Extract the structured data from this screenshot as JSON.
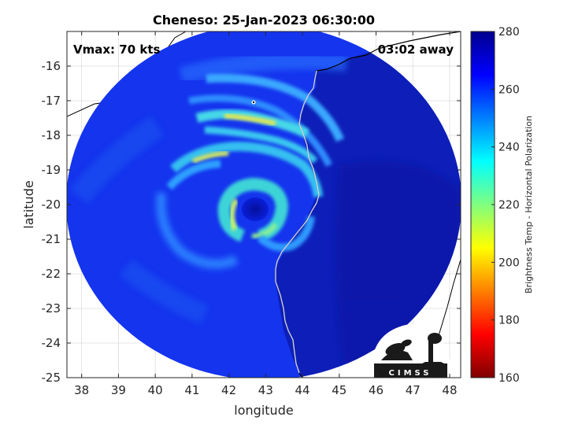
{
  "chart_data": {
    "type": "heatmap",
    "title": "Cheneso: 25-Jan-2023 06:30:00",
    "xlabel": "longitude",
    "ylabel": "latitude",
    "xlim": [
      37.6,
      48.3
    ],
    "ylim": [
      -25,
      -15
    ],
    "x_ticks": [
      38,
      39,
      40,
      41,
      42,
      43,
      44,
      45,
      46,
      47,
      48
    ],
    "y_ticks": [
      -16,
      -17,
      -18,
      -19,
      -20,
      -21,
      -22,
      -23,
      -24,
      -25
    ],
    "grid": true,
    "annotations": {
      "vmax": "Vmax: 70 kts",
      "time_away": "03:02 away"
    },
    "colorbar": {
      "label": "Brightness Temp - Horizontal Polarization",
      "range": [
        160,
        280
      ],
      "ticks": [
        160,
        180,
        200,
        220,
        240,
        260,
        280
      ],
      "colormap": "jet"
    },
    "storm_center": {
      "lon": 42.7,
      "lat": -20.2
    },
    "swath_center": {
      "lon": 42.9,
      "lat": -20.0
    },
    "logo_text": "CIMSS"
  }
}
